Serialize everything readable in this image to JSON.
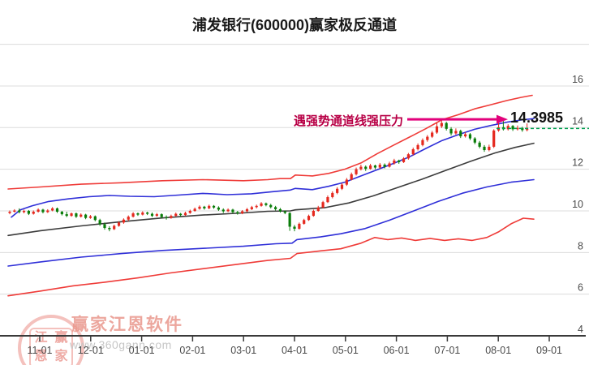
{
  "colors": {
    "up_candle": "#e5281e",
    "down_candle": "#0a7d0a",
    "channel_red": "#ef3b38",
    "channel_blue": "#2f2fd8",
    "channel_mid": "#3c3c3c",
    "grid": "#dcdcdc",
    "axis": "#3a3a3a",
    "tick_label": "#4a4a4a",
    "dotted_green": "#00a050",
    "arrow": "#e2017b",
    "annotation_text": "#b80046",
    "title": "#1a1a1a"
  },
  "watermark": {
    "brand": "赢家江恩软件",
    "url": "www.360gann.com",
    "seal_chars": [
      "江",
      "赢",
      "恩",
      "家"
    ]
  },
  "chart_data": {
    "type": "candlestick",
    "title": "浦发银行(600000)赢家极反通道",
    "indicator": "赢家极反通道",
    "ylim": [
      4,
      18
    ],
    "grid": true,
    "y_ticks": [
      16,
      14,
      12,
      10,
      8,
      6,
      4
    ],
    "x_tick_labels": [
      "11-01",
      "12-01",
      "01-01",
      "02-01",
      "03-01",
      "04-01",
      "05-01",
      "06-01",
      "07-01",
      "08-01",
      "09-01"
    ],
    "annotation": {
      "text": "遇强势通道线强压力",
      "value_label": "14.3985",
      "value": 14.3985
    },
    "current_price_line": 13.96,
    "candles": [
      [
        9.9,
        10.02,
        9.84,
        9.96
      ],
      [
        9.96,
        10.08,
        9.92,
        10.02
      ],
      [
        10.02,
        10.12,
        9.88,
        9.94
      ],
      [
        9.94,
        10.06,
        9.88,
        10.0
      ],
      [
        10.0,
        10.04,
        9.8,
        9.86
      ],
      [
        9.86,
        10.02,
        9.82,
        9.96
      ],
      [
        9.96,
        10.12,
        9.92,
        10.06
      ],
      [
        10.06,
        10.1,
        9.88,
        9.94
      ],
      [
        9.94,
        10.08,
        9.9,
        10.02
      ],
      [
        10.02,
        10.18,
        9.98,
        10.12
      ],
      [
        10.12,
        10.16,
        9.9,
        9.96
      ],
      [
        9.96,
        10.0,
        9.78,
        9.84
      ],
      [
        9.84,
        9.96,
        9.7,
        9.76
      ],
      [
        9.76,
        9.92,
        9.72,
        9.88
      ],
      [
        9.88,
        9.92,
        9.66,
        9.72
      ],
      [
        9.72,
        9.88,
        9.68,
        9.82
      ],
      [
        9.82,
        9.86,
        9.6,
        9.66
      ],
      [
        9.66,
        9.8,
        9.62,
        9.74
      ],
      [
        9.74,
        9.78,
        9.5,
        9.56
      ],
      [
        9.56,
        9.62,
        9.28,
        9.36
      ],
      [
        9.36,
        9.44,
        9.1,
        9.18
      ],
      [
        9.18,
        9.26,
        9.02,
        9.12
      ],
      [
        9.12,
        9.34,
        9.08,
        9.28
      ],
      [
        9.28,
        9.5,
        9.24,
        9.44
      ],
      [
        9.44,
        9.64,
        9.38,
        9.58
      ],
      [
        9.58,
        9.78,
        9.52,
        9.72
      ],
      [
        9.72,
        9.94,
        9.68,
        9.88
      ],
      [
        9.88,
        9.92,
        9.76,
        9.82
      ],
      [
        9.82,
        9.98,
        9.78,
        9.92
      ],
      [
        9.92,
        9.96,
        9.8,
        9.86
      ],
      [
        9.86,
        9.92,
        9.7,
        9.76
      ],
      [
        9.76,
        9.9,
        9.72,
        9.84
      ],
      [
        9.84,
        9.88,
        9.64,
        9.7
      ],
      [
        9.7,
        9.78,
        9.58,
        9.66
      ],
      [
        9.66,
        9.82,
        9.62,
        9.76
      ],
      [
        9.76,
        9.92,
        9.72,
        9.86
      ],
      [
        9.86,
        9.9,
        9.74,
        9.8
      ],
      [
        9.8,
        9.96,
        9.76,
        9.9
      ],
      [
        9.9,
        10.06,
        9.86,
        10.0
      ],
      [
        10.0,
        10.16,
        9.96,
        10.1
      ],
      [
        10.1,
        10.26,
        10.06,
        10.2
      ],
      [
        10.2,
        10.24,
        10.06,
        10.12
      ],
      [
        10.12,
        10.3,
        10.08,
        10.24
      ],
      [
        10.24,
        10.28,
        10.1,
        10.16
      ],
      [
        10.16,
        10.22,
        10.0,
        10.06
      ],
      [
        10.06,
        10.12,
        9.9,
        9.98
      ],
      [
        9.98,
        10.12,
        9.94,
        10.06
      ],
      [
        10.06,
        10.1,
        9.88,
        9.94
      ],
      [
        9.94,
        10.0,
        9.82,
        9.88
      ],
      [
        9.88,
        10.04,
        9.84,
        9.98
      ],
      [
        9.98,
        10.14,
        9.94,
        10.08
      ],
      [
        10.08,
        10.24,
        10.04,
        10.18
      ],
      [
        10.18,
        10.3,
        10.12,
        10.24
      ],
      [
        10.24,
        10.42,
        10.2,
        10.36
      ],
      [
        10.36,
        10.4,
        10.22,
        10.28
      ],
      [
        10.28,
        10.34,
        10.12,
        10.18
      ],
      [
        10.18,
        10.24,
        10.02,
        10.08
      ],
      [
        10.08,
        10.14,
        9.92,
        9.98
      ],
      [
        9.98,
        10.02,
        9.84,
        9.9
      ],
      [
        9.9,
        9.94,
        9.04,
        9.24
      ],
      [
        9.24,
        9.32,
        9.02,
        9.14
      ],
      [
        9.14,
        9.44,
        9.1,
        9.38
      ],
      [
        9.38,
        9.62,
        9.34,
        9.56
      ],
      [
        9.56,
        9.82,
        9.52,
        9.76
      ],
      [
        9.76,
        10.06,
        9.72,
        10.0
      ],
      [
        10.0,
        10.24,
        9.96,
        10.16
      ],
      [
        10.16,
        10.48,
        10.12,
        10.42
      ],
      [
        10.42,
        10.74,
        10.38,
        10.66
      ],
      [
        10.66,
        10.94,
        10.6,
        10.86
      ],
      [
        10.86,
        11.14,
        10.8,
        11.06
      ],
      [
        11.06,
        11.34,
        11.0,
        11.26
      ],
      [
        11.26,
        11.58,
        11.2,
        11.5
      ],
      [
        11.5,
        11.84,
        11.46,
        11.76
      ],
      [
        11.76,
        12.08,
        11.7,
        12.0
      ],
      [
        12.0,
        12.22,
        11.94,
        12.12
      ],
      [
        12.12,
        12.18,
        11.92,
        12.02
      ],
      [
        12.02,
        12.26,
        11.98,
        12.18
      ],
      [
        12.18,
        12.22,
        12.0,
        12.08
      ],
      [
        12.08,
        12.3,
        12.02,
        12.22
      ],
      [
        12.22,
        12.28,
        12.04,
        12.12
      ],
      [
        12.12,
        12.36,
        12.08,
        12.28
      ],
      [
        12.28,
        12.5,
        12.22,
        12.42
      ],
      [
        12.42,
        12.46,
        12.26,
        12.34
      ],
      [
        12.34,
        12.58,
        12.3,
        12.52
      ],
      [
        12.52,
        12.78,
        12.46,
        12.72
      ],
      [
        12.72,
        13.04,
        12.66,
        12.96
      ],
      [
        12.96,
        13.24,
        12.9,
        13.16
      ],
      [
        13.16,
        13.48,
        13.1,
        13.4
      ],
      [
        13.4,
        13.64,
        13.32,
        13.56
      ],
      [
        13.56,
        13.84,
        13.5,
        13.76
      ],
      [
        13.76,
        14.24,
        13.7,
        14.06
      ],
      [
        14.06,
        14.4,
        13.98,
        14.22
      ],
      [
        14.22,
        14.28,
        13.86,
        13.94
      ],
      [
        13.94,
        14.02,
        13.62,
        13.72
      ],
      [
        13.72,
        13.96,
        13.66,
        13.84
      ],
      [
        13.84,
        13.9,
        13.5,
        13.58
      ],
      [
        13.58,
        13.78,
        13.52,
        13.68
      ],
      [
        13.68,
        13.74,
        13.4,
        13.48
      ],
      [
        13.48,
        13.54,
        13.2,
        13.28
      ],
      [
        13.28,
        13.36,
        13.0,
        13.08
      ],
      [
        13.08,
        13.16,
        12.84,
        12.92
      ],
      [
        12.92,
        13.18,
        12.86,
        13.08
      ],
      [
        13.08,
        13.92,
        13.02,
        13.86
      ],
      [
        13.86,
        14.28,
        13.8,
        14.02
      ],
      [
        14.02,
        14.32,
        13.86,
        13.92
      ],
      [
        13.92,
        14.16,
        13.86,
        14.08
      ],
      [
        14.08,
        14.12,
        13.84,
        13.92
      ],
      [
        13.92,
        14.1,
        13.86,
        13.98
      ],
      [
        13.98,
        14.04,
        13.8,
        13.88
      ],
      [
        13.88,
        14.2,
        13.82,
        13.96
      ]
    ],
    "channel_lines": {
      "upper_red": [
        [
          10,
          11.05
        ],
        [
          50,
          11.15
        ],
        [
          100,
          11.28
        ],
        [
          150,
          11.35
        ],
        [
          200,
          11.45
        ],
        [
          250,
          11.5
        ],
        [
          300,
          11.45
        ],
        [
          330,
          11.5
        ],
        [
          345,
          11.55
        ],
        [
          358,
          11.55
        ],
        [
          364,
          11.72
        ],
        [
          385,
          11.68
        ],
        [
          405,
          11.8
        ],
        [
          425,
          12.0
        ],
        [
          445,
          12.3
        ],
        [
          465,
          12.75
        ],
        [
          485,
          13.15
        ],
        [
          505,
          13.55
        ],
        [
          525,
          13.95
        ],
        [
          545,
          14.38
        ],
        [
          565,
          14.62
        ],
        [
          585,
          14.9
        ],
        [
          605,
          15.1
        ],
        [
          625,
          15.3
        ],
        [
          642,
          15.45
        ],
        [
          656,
          15.55
        ]
      ],
      "upper_blue": [
        [
          14,
          9.7
        ],
        [
          25,
          10.05
        ],
        [
          40,
          10.25
        ],
        [
          60,
          10.45
        ],
        [
          85,
          10.58
        ],
        [
          110,
          10.68
        ],
        [
          135,
          10.74
        ],
        [
          160,
          10.7
        ],
        [
          190,
          10.68
        ],
        [
          220,
          10.76
        ],
        [
          250,
          10.84
        ],
        [
          280,
          10.78
        ],
        [
          310,
          10.82
        ],
        [
          335,
          10.92
        ],
        [
          358,
          11.0
        ],
        [
          364,
          11.08
        ],
        [
          385,
          11.02
        ],
        [
          405,
          11.18
        ],
        [
          425,
          11.38
        ],
        [
          445,
          11.68
        ],
        [
          465,
          11.98
        ],
        [
          485,
          12.28
        ],
        [
          505,
          12.6
        ],
        [
          525,
          13.0
        ],
        [
          545,
          13.38
        ],
        [
          565,
          13.66
        ],
        [
          585,
          13.92
        ],
        [
          605,
          14.1
        ],
        [
          625,
          14.26
        ],
        [
          645,
          14.38
        ],
        [
          658,
          14.43
        ]
      ],
      "middle": [
        [
          10,
          8.82
        ],
        [
          50,
          9.05
        ],
        [
          100,
          9.28
        ],
        [
          150,
          9.48
        ],
        [
          200,
          9.66
        ],
        [
          250,
          9.8
        ],
        [
          300,
          9.9
        ],
        [
          330,
          9.98
        ],
        [
          358,
          10.0
        ],
        [
          364,
          10.05
        ],
        [
          400,
          10.15
        ],
        [
          430,
          10.38
        ],
        [
          460,
          10.72
        ],
        [
          490,
          11.12
        ],
        [
          520,
          11.52
        ],
        [
          550,
          11.95
        ],
        [
          580,
          12.38
        ],
        [
          610,
          12.78
        ],
        [
          635,
          13.05
        ],
        [
          658,
          13.25
        ]
      ],
      "lower_blue": [
        [
          10,
          7.35
        ],
        [
          50,
          7.55
        ],
        [
          100,
          7.78
        ],
        [
          150,
          7.95
        ],
        [
          200,
          8.1
        ],
        [
          250,
          8.2
        ],
        [
          300,
          8.3
        ],
        [
          340,
          8.42
        ],
        [
          360,
          8.45
        ],
        [
          366,
          8.62
        ],
        [
          395,
          8.75
        ],
        [
          420,
          8.9
        ],
        [
          450,
          9.15
        ],
        [
          480,
          9.55
        ],
        [
          510,
          10.0
        ],
        [
          540,
          10.45
        ],
        [
          570,
          10.85
        ],
        [
          600,
          11.15
        ],
        [
          630,
          11.38
        ],
        [
          658,
          11.5
        ]
      ],
      "lower_red": [
        [
          10,
          5.92
        ],
        [
          50,
          6.15
        ],
        [
          90,
          6.4
        ],
        [
          130,
          6.58
        ],
        [
          170,
          6.78
        ],
        [
          210,
          7.02
        ],
        [
          250,
          7.22
        ],
        [
          290,
          7.42
        ],
        [
          330,
          7.62
        ],
        [
          358,
          7.72
        ],
        [
          366,
          7.95
        ],
        [
          395,
          8.08
        ],
        [
          420,
          8.18
        ],
        [
          445,
          8.45
        ],
        [
          462,
          8.72
        ],
        [
          478,
          8.62
        ],
        [
          495,
          8.7
        ],
        [
          512,
          8.58
        ],
        [
          530,
          8.68
        ],
        [
          548,
          8.58
        ],
        [
          565,
          8.66
        ],
        [
          582,
          8.58
        ],
        [
          600,
          8.72
        ],
        [
          615,
          9.0
        ],
        [
          630,
          9.38
        ],
        [
          645,
          9.65
        ],
        [
          658,
          9.6
        ]
      ]
    }
  }
}
